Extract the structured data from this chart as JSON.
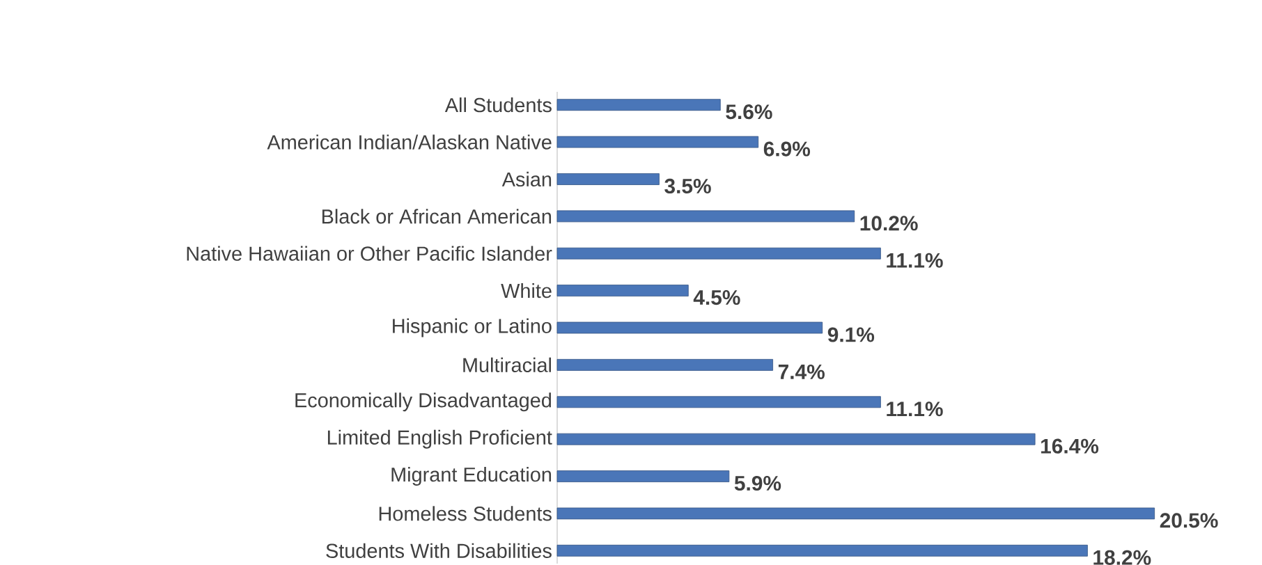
{
  "chart_data": {
    "type": "bar",
    "orientation": "horizontal",
    "categories": [
      "All Students",
      "American Indian/Alaskan Native",
      "Asian",
      "Black or African American",
      "Native Hawaiian or Other Pacific Islander",
      "White",
      "Hispanic or Latino",
      "Multiracial",
      "Economically Disadvantaged",
      "Limited English Proficient",
      "Migrant Education",
      "Homeless Students",
      "Students With Disabilities"
    ],
    "values": [
      5.6,
      6.9,
      3.5,
      10.2,
      11.1,
      4.5,
      9.1,
      7.4,
      11.1,
      16.4,
      5.9,
      20.5,
      18.2
    ],
    "value_labels": [
      "5.6%",
      "6.9%",
      "3.5%",
      "10.2%",
      "11.1%",
      "4.5%",
      "9.1%",
      "7.4%",
      "11.1%",
      "16.4%",
      "5.9%",
      "20.5%",
      "18.2%"
    ],
    "color": "#4a76b8"
  }
}
